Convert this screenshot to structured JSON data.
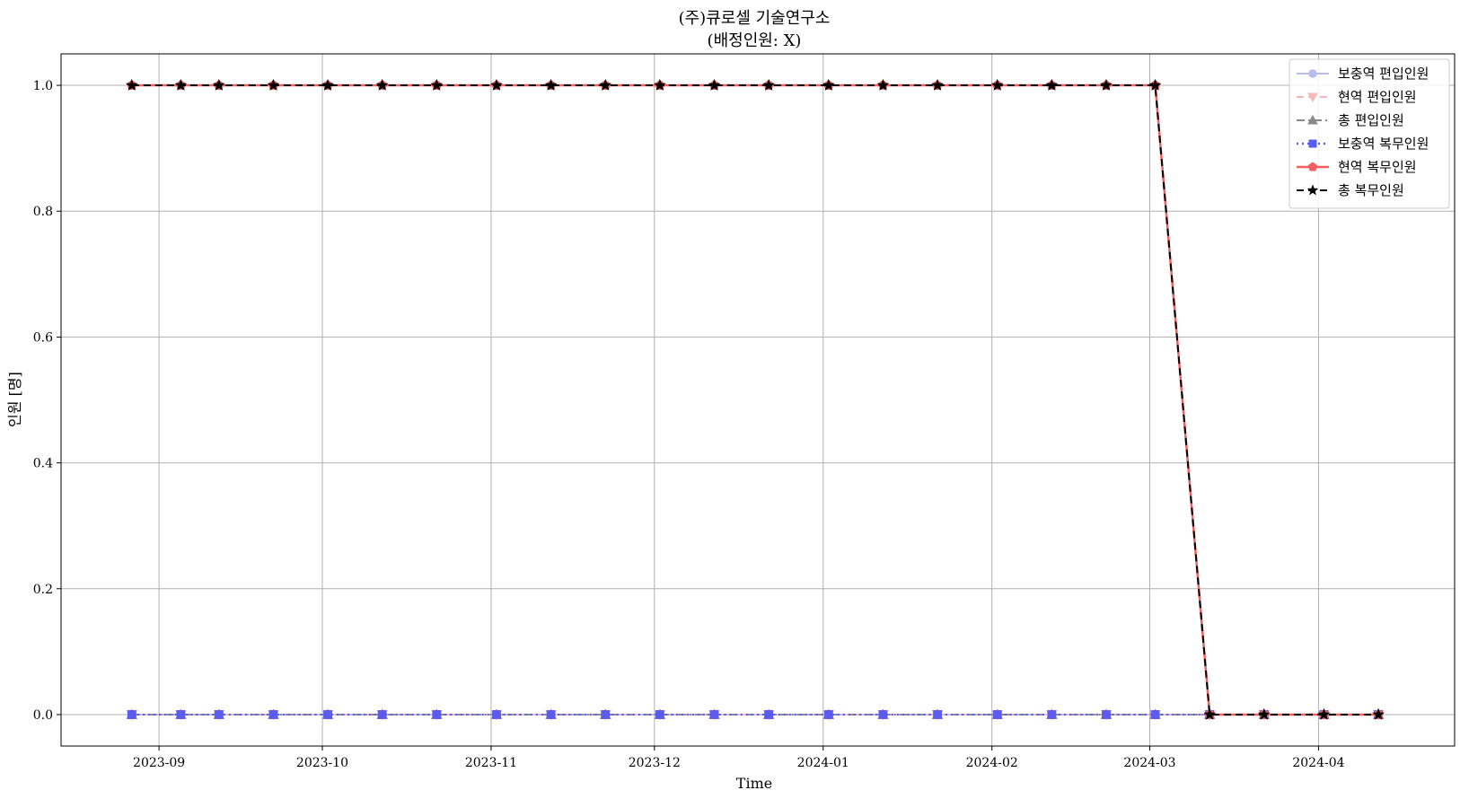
{
  "chart_data": {
    "type": "line",
    "title": "(주)큐로셀 기술연구소",
    "subtitle": "(배정인원: X)",
    "xlabel": "Time",
    "ylabel": "인원 [명]",
    "ylim": [
      -0.05,
      1.05
    ],
    "yticks": [
      0.0,
      0.2,
      0.4,
      0.6,
      0.8,
      1.0
    ],
    "ytick_labels": [
      "0.0",
      "0.2",
      "0.4",
      "0.6",
      "0.8",
      "1.0"
    ],
    "xlim": [
      "2023-08-14",
      "2024-04-26"
    ],
    "xticks": [
      "2023-09-01",
      "2023-10-01",
      "2023-11-01",
      "2023-12-01",
      "2024-01-01",
      "2024-02-01",
      "2024-03-01",
      "2024-04-01"
    ],
    "xtick_labels": [
      "2023-09",
      "2023-10",
      "2023-11",
      "2023-12",
      "2024-01",
      "2024-02",
      "2024-03",
      "2024-04"
    ],
    "grid": true,
    "legend_position": "top-right",
    "x": [
      "2023-08-27",
      "2023-09-05",
      "2023-09-12",
      "2023-09-22",
      "2023-10-02",
      "2023-10-12",
      "2023-10-22",
      "2023-11-02",
      "2023-11-12",
      "2023-11-22",
      "2023-12-02",
      "2023-12-12",
      "2023-12-22",
      "2024-01-02",
      "2024-01-12",
      "2024-01-22",
      "2024-02-02",
      "2024-02-12",
      "2024-02-22",
      "2024-03-02",
      "2024-03-12",
      "2024-03-22",
      "2024-04-02",
      "2024-04-12"
    ],
    "series": [
      {
        "name": "보충역 편입인원",
        "color": "#b8bcf0",
        "dash": "",
        "marker": "circle",
        "width": 2,
        "values": [
          0,
          0,
          0,
          0,
          0,
          0,
          0,
          0,
          0,
          0,
          0,
          0,
          0,
          0,
          0,
          0,
          0,
          0,
          0,
          0,
          0,
          0,
          0,
          0
        ]
      },
      {
        "name": "현역 편입인원",
        "color": "#f5b9b9",
        "dash": "8,5",
        "marker": "triangle-down",
        "width": 2,
        "values": [
          0,
          0,
          0,
          0,
          0,
          0,
          0,
          0,
          0,
          0,
          0,
          0,
          0,
          0,
          0,
          0,
          0,
          0,
          0,
          0,
          0,
          0,
          0,
          0
        ]
      },
      {
        "name": "총 편입인원",
        "color": "#8a8a8a",
        "dash": "9,4,2,4",
        "marker": "triangle-up",
        "width": 2,
        "values": [
          0,
          0,
          0,
          0,
          0,
          0,
          0,
          0,
          0,
          0,
          0,
          0,
          0,
          0,
          0,
          0,
          0,
          0,
          0,
          0,
          0,
          0,
          0,
          0
        ]
      },
      {
        "name": "보충역 복무인원",
        "color": "#5b5bf0",
        "dash": "2,4",
        "marker": "square",
        "width": 2.2,
        "values": [
          0,
          0,
          0,
          0,
          0,
          0,
          0,
          0,
          0,
          0,
          0,
          0,
          0,
          0,
          0,
          0,
          0,
          0,
          0,
          0,
          0,
          0,
          0,
          0
        ]
      },
      {
        "name": "현역 복무인원",
        "color": "#f06060",
        "dash": "",
        "marker": "pentagon",
        "width": 2.5,
        "values": [
          1,
          1,
          1,
          1,
          1,
          1,
          1,
          1,
          1,
          1,
          1,
          1,
          1,
          1,
          1,
          1,
          1,
          1,
          1,
          1,
          0,
          0,
          0,
          0
        ]
      },
      {
        "name": "총 복무인원",
        "color": "#000000",
        "dash": "8,5",
        "marker": "star",
        "width": 2,
        "values": [
          1,
          1,
          1,
          1,
          1,
          1,
          1,
          1,
          1,
          1,
          1,
          1,
          1,
          1,
          1,
          1,
          1,
          1,
          1,
          1,
          0,
          0,
          0,
          0
        ]
      }
    ]
  }
}
